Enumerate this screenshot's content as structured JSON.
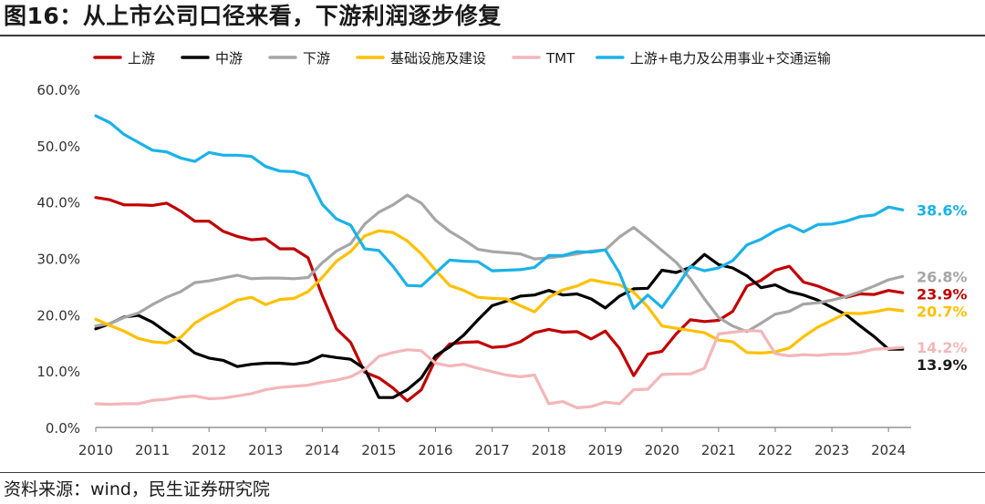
{
  "title": "图16：从上市公司口径来看，下游利润逐步修复",
  "source": "资料来源：wind，民生证券研究院",
  "chart_data": {
    "type": "line",
    "title": "图16：从上市公司口径来看，下游利润逐步修复",
    "ylim": [
      0,
      60
    ],
    "yticks": [
      "0.0%",
      "10.0%",
      "20.0%",
      "30.0%",
      "40.0%",
      "50.0%",
      "60.0%"
    ],
    "xticks": [
      "2010",
      "2011",
      "2012",
      "2013",
      "2014",
      "2015",
      "2016",
      "2017",
      "2018",
      "2019",
      "2020",
      "2021",
      "2022",
      "2023",
      "2024"
    ],
    "xlim": [
      2010,
      2024.4
    ],
    "legend_position": "top",
    "x": [
      2010.0,
      2010.25,
      2010.5,
      2010.75,
      2011.0,
      2011.25,
      2011.5,
      2011.75,
      2012.0,
      2012.25,
      2012.5,
      2012.75,
      2013.0,
      2013.25,
      2013.5,
      2013.75,
      2014.0,
      2014.25,
      2014.5,
      2014.75,
      2015.0,
      2015.25,
      2015.5,
      2015.75,
      2016.0,
      2016.25,
      2016.5,
      2016.75,
      2017.0,
      2017.25,
      2017.5,
      2017.75,
      2018.0,
      2018.25,
      2018.5,
      2018.75,
      2019.0,
      2019.25,
      2019.5,
      2019.75,
      2020.0,
      2020.25,
      2020.5,
      2020.75,
      2021.0,
      2021.25,
      2021.5,
      2021.75,
      2022.0,
      2022.25,
      2022.5,
      2022.75,
      2023.0,
      2023.25,
      2023.5,
      2023.75,
      2024.0,
      2024.25
    ],
    "series": [
      {
        "name": "上游",
        "color": "#c00000",
        "end_label": "23.9%",
        "values": [
          40.8,
          40.4,
          39.5,
          39.5,
          39.4,
          39.8,
          38.4,
          36.6,
          36.6,
          34.8,
          33.9,
          33.3,
          33.5,
          31.7,
          31.7,
          30.1,
          23.4,
          17.5,
          15.1,
          9.8,
          8.8,
          7.0,
          4.7,
          6.7,
          12.1,
          14.8,
          15.1,
          15.2,
          14.2,
          14.4,
          15.2,
          16.8,
          17.4,
          16.9,
          17.0,
          15.7,
          17.1,
          14.0,
          9.2,
          13.0,
          13.5,
          16.6,
          19.1,
          18.8,
          19.0,
          20.6,
          25.1,
          26.1,
          27.9,
          28.6,
          25.8,
          25.1,
          24.1,
          23.1,
          23.7,
          23.6,
          24.3,
          23.9
        ]
      },
      {
        "name": "中游",
        "color": "#000000",
        "end_label": "13.9%",
        "values": [
          17.5,
          18.4,
          19.6,
          19.9,
          18.7,
          16.9,
          15.2,
          13.2,
          12.3,
          11.9,
          10.8,
          11.2,
          11.4,
          11.4,
          11.2,
          11.6,
          12.8,
          12.4,
          12.1,
          10.4,
          5.3,
          5.3,
          6.7,
          8.8,
          12.7,
          14.3,
          16.4,
          19.1,
          21.6,
          22.4,
          23.3,
          23.5,
          24.3,
          23.5,
          23.7,
          22.8,
          21.2,
          23.3,
          24.6,
          24.7,
          27.9,
          27.5,
          28.4,
          30.7,
          28.9,
          28.3,
          26.9,
          24.8,
          25.3,
          24.1,
          23.5,
          22.6,
          21.3,
          20.0,
          18.0,
          16.1,
          13.9,
          13.9
        ]
      },
      {
        "name": "下游",
        "color": "#a6a6a6",
        "end_label": "26.8%",
        "values": [
          18.0,
          18.4,
          19.5,
          20.3,
          21.8,
          23.1,
          24.1,
          25.7,
          26.0,
          26.5,
          27.0,
          26.4,
          26.5,
          26.5,
          26.4,
          26.6,
          29.2,
          31.3,
          32.6,
          36.1,
          38.2,
          39.5,
          41.2,
          39.8,
          36.8,
          34.8,
          33.3,
          31.6,
          31.2,
          31.0,
          30.8,
          29.9,
          30.1,
          30.4,
          30.8,
          31.3,
          31.5,
          33.8,
          35.5,
          33.5,
          31.4,
          29.3,
          26.4,
          22.8,
          19.5,
          18.0,
          17.0,
          18.5,
          20.1,
          20.6,
          21.9,
          22.1,
          22.6,
          23.2,
          24.1,
          25.1,
          26.2,
          26.8
        ]
      },
      {
        "name": "基础设施及建设",
        "color": "#ffc000",
        "end_label": "20.7%",
        "values": [
          19.2,
          18.1,
          17.1,
          15.8,
          15.2,
          15.0,
          16.0,
          18.5,
          20.0,
          21.2,
          22.6,
          23.1,
          21.8,
          22.7,
          22.9,
          24.1,
          26.6,
          29.5,
          31.2,
          34.0,
          34.9,
          34.6,
          33.1,
          30.8,
          27.9,
          25.2,
          24.3,
          23.1,
          22.9,
          22.8,
          21.6,
          20.5,
          23.1,
          24.4,
          25.1,
          26.2,
          25.7,
          25.3,
          24.0,
          21.4,
          18.0,
          17.6,
          17.2,
          16.8,
          15.5,
          15.2,
          13.3,
          13.2,
          13.4,
          14.1,
          16.1,
          17.8,
          19.0,
          20.3,
          20.2,
          20.5,
          21.0,
          20.7
        ]
      },
      {
        "name": "TMT",
        "color": "#f4b6b9",
        "end_label": "14.2%",
        "values": [
          4.2,
          4.1,
          4.2,
          4.2,
          4.8,
          5.0,
          5.4,
          5.6,
          5.1,
          5.2,
          5.6,
          6.0,
          6.7,
          7.1,
          7.3,
          7.5,
          8.0,
          8.4,
          9.0,
          10.3,
          12.6,
          13.3,
          13.8,
          13.6,
          11.4,
          10.9,
          11.2,
          10.5,
          9.9,
          9.3,
          9.0,
          9.3,
          4.2,
          4.6,
          3.5,
          3.7,
          4.5,
          4.2,
          6.7,
          6.8,
          9.4,
          9.5,
          9.5,
          10.5,
          16.6,
          16.9,
          17.2,
          17.1,
          13.1,
          12.7,
          12.9,
          12.8,
          13.0,
          13.0,
          13.3,
          13.9,
          14.0,
          14.2
        ]
      },
      {
        "name": "上游+电力及公用事业+交通运输",
        "color": "#1ab2e8",
        "end_label": "38.6%",
        "values": [
          55.3,
          54.1,
          52.0,
          50.6,
          49.2,
          48.9,
          47.8,
          47.2,
          48.8,
          48.3,
          48.3,
          48.1,
          46.3,
          45.5,
          45.4,
          44.6,
          39.6,
          37.0,
          35.9,
          31.7,
          31.4,
          28.6,
          25.2,
          25.1,
          27.4,
          29.7,
          29.5,
          29.4,
          27.8,
          27.9,
          28.0,
          28.4,
          30.5,
          30.5,
          31.2,
          31.1,
          31.5,
          27.4,
          21.1,
          23.5,
          21.3,
          24.8,
          28.6,
          27.8,
          28.3,
          29.6,
          32.4,
          33.4,
          34.9,
          35.9,
          34.7,
          36.0,
          36.1,
          36.6,
          37.4,
          37.7,
          39.1,
          38.6
        ]
      }
    ]
  }
}
